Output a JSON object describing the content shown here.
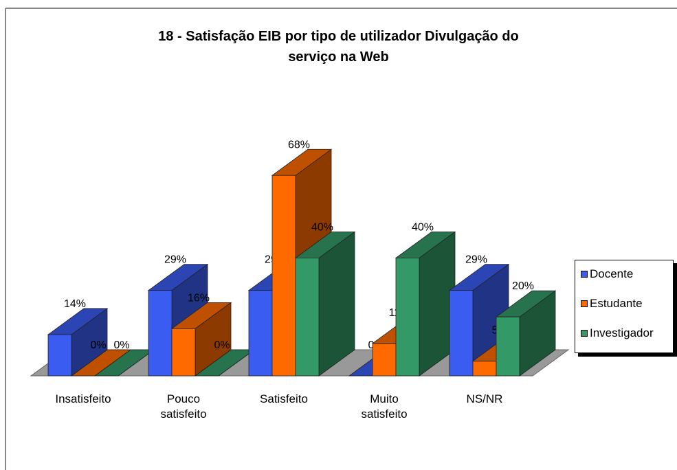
{
  "chart_data": {
    "type": "bar3d",
    "title": [
      "18 - Satisfação EIB por tipo de utilizador Divulgação do",
      "serviço na Web"
    ],
    "categories": [
      "Insatisfeito",
      "Pouco satisfeito",
      "Satisfeito",
      "Muito satisfeito",
      "NS/NR"
    ],
    "series": [
      {
        "name": "Docente",
        "color": "#3a5cf0",
        "values": [
          14,
          29,
          29,
          0,
          29
        ],
        "value_labels": [
          "14%",
          "29%",
          "29%",
          "0%",
          "29%"
        ]
      },
      {
        "name": "Estudante",
        "color": "#ff6a00",
        "values": [
          0,
          16,
          68,
          11,
          5
        ],
        "value_labels": [
          "0%",
          "16%",
          "68%",
          "11%",
          "5%"
        ]
      },
      {
        "name": "Investigador",
        "color": "#339966",
        "values": [
          0,
          0,
          40,
          40,
          20
        ],
        "value_labels": [
          "0%",
          "0%",
          "40%",
          "40%",
          "20%"
        ]
      }
    ],
    "legend": "right"
  }
}
